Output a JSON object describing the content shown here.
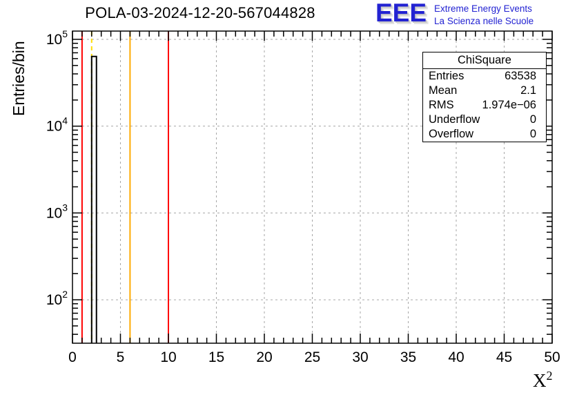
{
  "header": {
    "title": "POLA-03-2024-12-20-567044828"
  },
  "logo": {
    "acronym": "EEE",
    "line1": "Extreme Energy Events",
    "line2": "La Scienza nelle Scuole",
    "color": "#2222d2",
    "shadow_color": "#c8c8c8"
  },
  "stats": {
    "title": "ChiSquare",
    "rows": [
      {
        "label": "Entries",
        "value": "63538"
      },
      {
        "label": "Mean",
        "value": "2.1"
      },
      {
        "label": "RMS",
        "value": "1.974e−06"
      },
      {
        "label": "Underflow",
        "value": "0"
      },
      {
        "label": "Overflow",
        "value": "0"
      }
    ]
  },
  "axes": {
    "xlabel_base": "X",
    "xlabel_exp": "2"
  },
  "chart_data": {
    "type": "histogram",
    "title": "POLA-03-2024-12-20-567044828",
    "xlabel": "X^2",
    "ylabel": "Entries/bin",
    "xscale": "linear",
    "yscale": "log",
    "xlim": [
      0,
      50
    ],
    "ylim": [
      31.6,
      124500
    ],
    "x_major_ticks": [
      0,
      5,
      10,
      15,
      20,
      25,
      30,
      35,
      40,
      45,
      50
    ],
    "x_minor_step": 1,
    "y_major_ticks": [
      100,
      1000,
      10000,
      100000
    ],
    "y_tick_labels": [
      "10^2",
      "10^3",
      "10^4",
      "10^5"
    ],
    "y_tick_exponents": [
      2,
      3,
      4,
      5
    ],
    "grid": true,
    "series": [
      {
        "name": "chisquare",
        "color": "#000000",
        "style": "step-outline",
        "bins": [
          {
            "x0": 2.0,
            "x1": 2.5,
            "count": 63538
          }
        ]
      }
    ],
    "markers": [
      {
        "x": 1.0,
        "color": "#ff0000",
        "style": "solid",
        "name": "red-marker-x1"
      },
      {
        "x": 2.0,
        "color": "#ffdd00",
        "style": "dashed",
        "name": "yellow-dashed-marker-x2"
      },
      {
        "x": 6.0,
        "color": "#ffaa00",
        "style": "solid",
        "name": "orange-marker-x6"
      },
      {
        "x": 10.0,
        "color": "#ff0000",
        "style": "solid",
        "name": "red-marker-x10"
      }
    ],
    "stats_summary": {
      "entries": 63538,
      "mean": 2.1,
      "rms": "1.974e-06",
      "underflow": 0,
      "overflow": 0
    }
  }
}
